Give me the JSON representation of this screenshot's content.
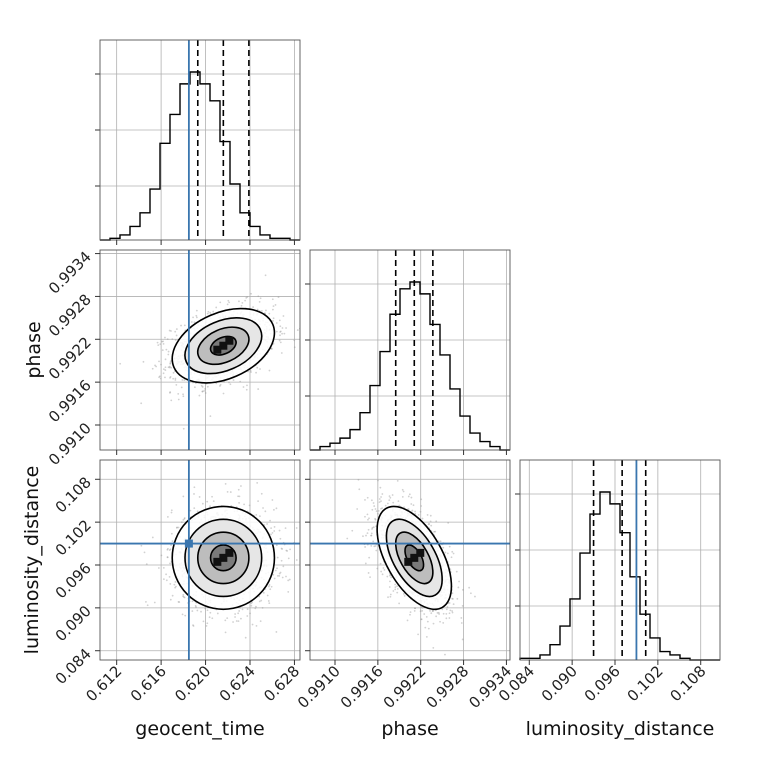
{
  "chart_data": {
    "type": "corner",
    "parameters": [
      "geocent_time",
      "phase",
      "luminosity_distance"
    ],
    "axis_labels": {
      "geocent_time": "geocent_time",
      "phase": "phase",
      "luminosity_distance": "luminosity_distance"
    },
    "ranges": {
      "geocent_time": [
        0.6105,
        0.6285
      ],
      "phase": [
        0.99065,
        0.99345
      ],
      "luminosity_distance": [
        0.0827,
        0.1107
      ]
    },
    "ticks": {
      "geocent_time": [
        "0.612",
        "0.616",
        "0.620",
        "0.624",
        "0.628"
      ],
      "phase": [
        "0.9910",
        "0.9916",
        "0.9922",
        "0.9928",
        "0.9934"
      ],
      "luminosity_distance": [
        "0.084",
        "0.090",
        "0.096",
        "0.102",
        "0.108"
      ]
    },
    "injection": {
      "geocent_time": 0.6185,
      "luminosity_distance": 0.099
    },
    "quantiles": {
      "geocent_time": [
        0.6193,
        0.6216,
        0.6239
      ],
      "phase": [
        0.99185,
        0.99211,
        0.99237
      ],
      "luminosity_distance": [
        0.093,
        0.097,
        0.1003
      ]
    },
    "marginals": {
      "geocent_time": {
        "bin_edges_start": 0.6105,
        "bin_width": 0.0009,
        "counts": [
          0,
          1,
          3,
          8,
          16,
          30,
          57,
          74,
          92,
          99,
          92,
          82,
          58,
          33,
          16,
          8,
          3,
          1,
          1,
          0
        ]
      },
      "phase": {
        "bin_edges_start": 0.99065,
        "bin_width": 0.00014,
        "counts": [
          0,
          2,
          4,
          7,
          12,
          22,
          38,
          58,
          80,
          95,
          99,
          92,
          74,
          56,
          36,
          20,
          10,
          5,
          2,
          0
        ]
      },
      "luminosity_distance": {
        "bin_edges_start": 0.0827,
        "bin_width": 0.0014,
        "counts": [
          1,
          1,
          3,
          9,
          20,
          36,
          63,
          86,
          99,
          92,
          75,
          49,
          27,
          13,
          5,
          3,
          1,
          0,
          0,
          0
        ]
      }
    },
    "joint": {
      "phase_vs_geocent_time": {
        "mean": [
          0.6216,
          0.99211
        ],
        "std": [
          0.0023,
          0.00026
        ],
        "corr": 0.35
      },
      "luminosity_distance_vs_geocent_time": {
        "mean": [
          0.6216,
          0.097
        ],
        "std": [
          0.0023,
          0.0036
        ],
        "corr": 0.0
      },
      "luminosity_distance_vs_phase": {
        "mean": [
          0.99211,
          0.097
        ],
        "std": [
          0.00026,
          0.0036
        ],
        "corr": -0.55
      }
    },
    "injection_color": "#3a76af",
    "grid": true
  }
}
